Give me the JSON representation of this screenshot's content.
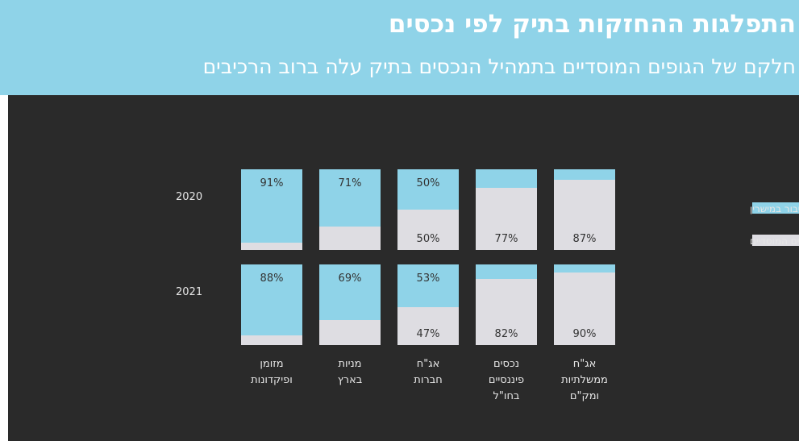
{
  "header": {
    "title": "התפלגות ההחזקות בתיק לפי נכסים",
    "subtitle": "חלקם של הגופים המוסדיים בתמהיל הנכסים בתיק עלה ברוב הרכיבים"
  },
  "colors": {
    "public": "#8fd3e8",
    "institutional": "#dedde2",
    "panel_bg": "#2a2a2a",
    "text": "#e6e6e6"
  },
  "chart_data": {
    "type": "bar",
    "stacked": true,
    "categories": [
      [
        "מזומן",
        "ופיקדונות"
      ],
      [
        "מניות",
        "בארץ"
      ],
      [
        "אג\"ח",
        "חברות"
      ],
      [
        "נכסים",
        "פיננסיים",
        "בחו\"ל"
      ],
      [
        "אג\"ח",
        "ממשלתיות",
        "ומק\"ם"
      ]
    ],
    "years": [
      "2020",
      "2021"
    ],
    "series": [
      {
        "name": "הציבור במישרין",
        "color": "#8fd3e8",
        "values_by_year": {
          "2020": [
            91,
            71,
            50,
            23,
            13
          ],
          "2021": [
            88,
            69,
            53,
            18,
            10
          ]
        },
        "labels_by_year": {
          "2020": [
            "91%",
            "71%",
            "50%",
            "",
            ""
          ],
          "2021": [
            "88%",
            "69%",
            "53%",
            "",
            ""
          ]
        }
      },
      {
        "name": "הגופים המוסדיים",
        "color": "#dedde2",
        "values_by_year": {
          "2020": [
            9,
            29,
            50,
            77,
            87
          ],
          "2021": [
            12,
            31,
            47,
            82,
            90
          ]
        },
        "labels_by_year": {
          "2020": [
            "",
            "",
            "50%",
            "77%",
            "87%"
          ],
          "2021": [
            "",
            "",
            "47%",
            "82%",
            "90%"
          ]
        }
      }
    ],
    "ylim": [
      0,
      100
    ],
    "legend_position": "right"
  }
}
